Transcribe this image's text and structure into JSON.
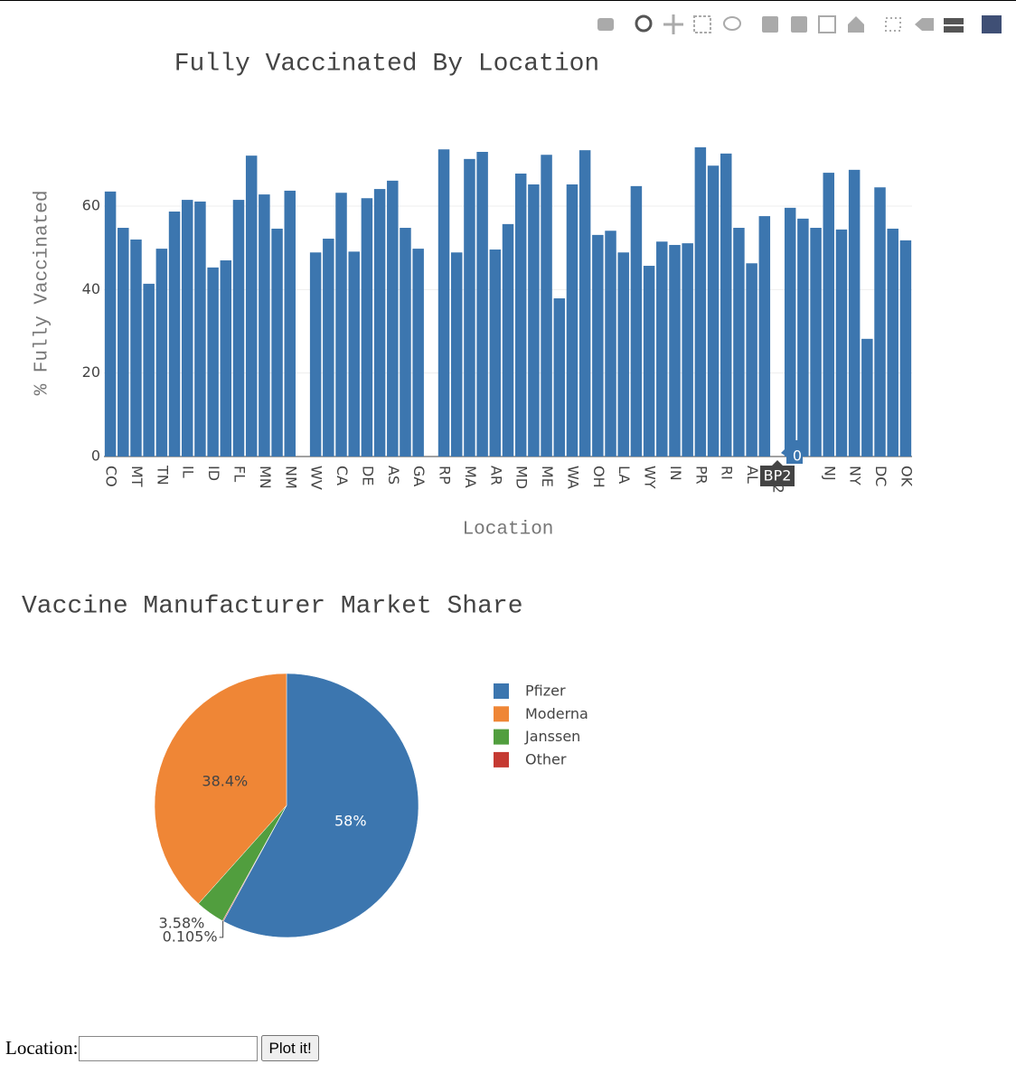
{
  "chart_data": [
    {
      "type": "bar",
      "title": "Fully Vaccinated By Location",
      "x_label": "Location",
      "y_label": "% Fully Vaccinated",
      "categories": [
        "CO",
        null,
        "MT",
        null,
        "TN",
        null,
        "IL",
        null,
        "ID",
        null,
        "FL",
        null,
        "MN",
        null,
        "NM",
        null,
        "WV",
        null,
        "CA",
        null,
        "DE",
        null,
        "AS",
        null,
        "GA",
        null,
        "RP",
        null,
        "MA",
        null,
        "AR",
        null,
        "MD",
        null,
        "ME",
        null,
        "WA",
        null,
        "OH",
        null,
        "LA",
        null,
        "WY",
        null,
        "IN",
        null,
        "PR",
        null,
        "RI",
        null,
        "AL",
        null,
        "BP2",
        null,
        null,
        null,
        "NJ",
        null,
        "NY",
        null,
        "DC",
        null,
        "OK"
      ],
      "values": [
        63.5,
        54.8,
        52,
        41.4,
        49.8,
        58.7,
        61.5,
        61.1,
        45.3,
        47,
        61.5,
        72.1,
        62.8,
        54.6,
        63.7,
        0,
        48.9,
        52.2,
        63.2,
        49.1,
        61.9,
        64.1,
        66.1,
        54.8,
        49.8,
        0,
        73.6,
        48.9,
        71.3,
        73,
        49.6,
        55.7,
        67.8,
        65.2,
        72.3,
        37.9,
        65.2,
        73.4,
        53.1,
        54.1,
        48.9,
        64.8,
        45.7,
        51.5,
        50.7,
        51.1,
        74.1,
        69.7,
        72.6,
        54.8,
        46.3,
        57.6,
        0,
        59.6,
        57,
        54.8,
        68,
        54.4,
        68.7,
        28.2,
        64.5,
        54.6,
        51.8
      ],
      "color": "#3c76af",
      "ylim": [
        0,
        76.9
      ],
      "yticks": [
        0,
        20,
        40,
        60
      ],
      "grid": true
    },
    {
      "type": "pie",
      "title": "Vaccine Manufacturer Market Share",
      "categories": [
        "Pfizer",
        "Moderna",
        "Janssen",
        "Other"
      ],
      "values": [
        58,
        38.4,
        3.58,
        0.105
      ],
      "value_labels": [
        "58%",
        "38.4%",
        "3.58%",
        "0.105%"
      ],
      "colors": [
        "#3c76af",
        "#ef8636",
        "#519e3e",
        "#c53a32"
      ]
    }
  ],
  "form": {
    "label": "Location:",
    "button": "Plot it!"
  }
}
